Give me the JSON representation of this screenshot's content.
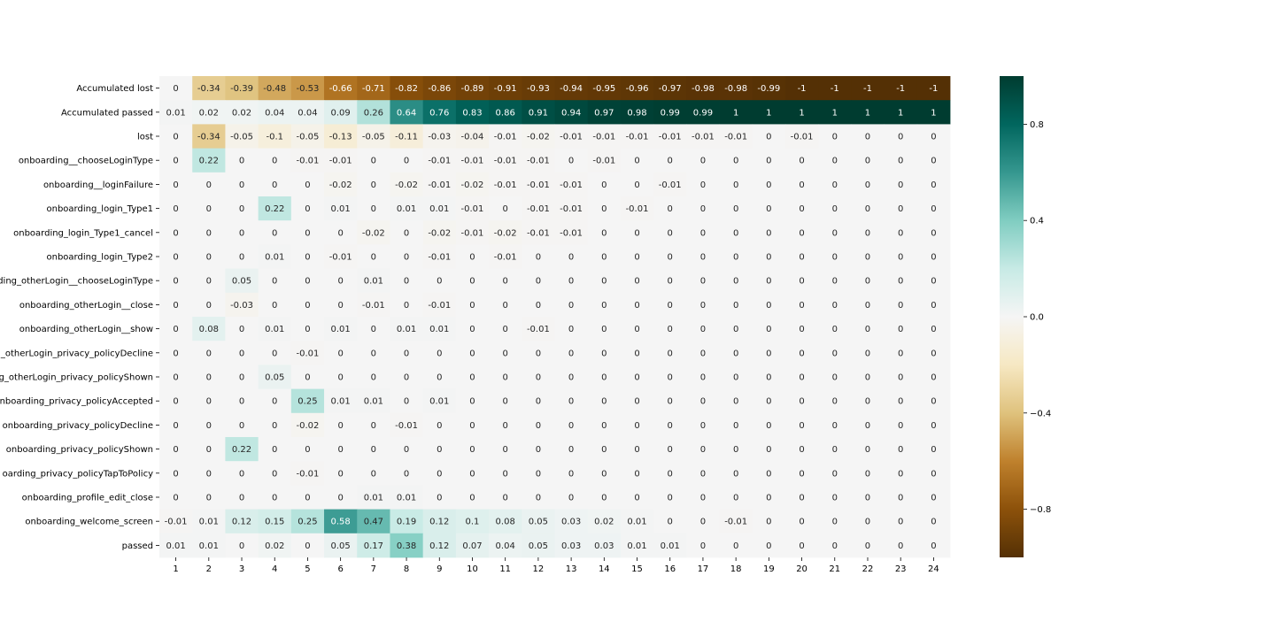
{
  "chart_data": {
    "type": "heatmap",
    "title": "",
    "xlabel": "",
    "ylabel": "",
    "x": [
      "1",
      "2",
      "3",
      "4",
      "5",
      "6",
      "7",
      "8",
      "9",
      "10",
      "11",
      "12",
      "13",
      "14",
      "15",
      "16",
      "17",
      "18",
      "19",
      "20",
      "21",
      "22",
      "23",
      "24"
    ],
    "y": [
      "Accumulated lost",
      "Accumulated passed",
      "lost",
      "onboarding__chooseLoginType",
      "onboarding__loginFailure",
      "onboarding_login_Type1",
      "onboarding_login_Type1_cancel",
      "onboarding_login_Type2",
      "ding_otherLogin__chooseLoginType",
      "onboarding_otherLogin__close",
      "onboarding_otherLogin__show",
      "_otherLogin_privacy_policyDecline",
      "g_otherLogin_privacy_policyShown",
      "onboarding_privacy_policyAccepted",
      "onboarding_privacy_policyDecline",
      "onboarding_privacy_policyShown",
      "oarding_privacy_policyTapToPolicy",
      "onboarding_profile_edit_close",
      "onboarding_welcome_screen",
      "passed"
    ],
    "values": [
      [
        0,
        -0.34,
        -0.39,
        -0.48,
        -0.53,
        -0.66,
        -0.71,
        -0.82,
        -0.86,
        -0.89,
        -0.91,
        -0.93,
        -0.94,
        -0.95,
        -0.96,
        -0.97,
        -0.98,
        -0.98,
        -0.99,
        -1,
        -1,
        -1,
        -1,
        -1
      ],
      [
        0.01,
        0.02,
        0.02,
        0.04,
        0.04,
        0.09,
        0.26,
        0.64,
        0.76,
        0.83,
        0.86,
        0.91,
        0.94,
        0.97,
        0.98,
        0.99,
        0.99,
        1,
        1,
        1,
        1,
        1,
        1,
        1
      ],
      [
        0,
        -0.34,
        -0.05,
        -0.1,
        -0.05,
        -0.13,
        -0.05,
        -0.11,
        -0.03,
        -0.04,
        -0.01,
        -0.02,
        -0.01,
        -0.01,
        -0.01,
        -0.01,
        -0.01,
        -0.01,
        0,
        -0.01,
        0,
        0,
        0,
        0
      ],
      [
        0,
        0.22,
        0,
        0,
        -0.01,
        -0.01,
        0,
        0,
        -0.01,
        -0.01,
        -0.01,
        -0.01,
        0,
        -0.01,
        0,
        0,
        0,
        0,
        0,
        0,
        0,
        0,
        0,
        0
      ],
      [
        0,
        0,
        0,
        0,
        0,
        -0.02,
        0,
        -0.02,
        -0.01,
        -0.02,
        -0.01,
        -0.01,
        -0.01,
        0,
        0,
        -0.01,
        0,
        0,
        0,
        0,
        0,
        0,
        0,
        0
      ],
      [
        0,
        0,
        0,
        0.22,
        0,
        0.01,
        0,
        0.01,
        0.01,
        -0.01,
        0,
        -0.01,
        -0.01,
        0,
        -0.01,
        0,
        0,
        0,
        0,
        0,
        0,
        0,
        0,
        0
      ],
      [
        0,
        0,
        0,
        0,
        0,
        0,
        -0.02,
        0,
        -0.02,
        -0.01,
        -0.02,
        -0.01,
        -0.01,
        0,
        0,
        0,
        0,
        0,
        0,
        0,
        0,
        0,
        0,
        0
      ],
      [
        0,
        0,
        0,
        0.01,
        0,
        -0.01,
        0,
        0,
        -0.01,
        0,
        -0.01,
        0,
        0,
        0,
        0,
        0,
        0,
        0,
        0,
        0,
        0,
        0,
        0,
        0
      ],
      [
        0,
        0,
        0.05,
        0,
        0,
        0,
        0.01,
        0,
        0,
        0,
        0,
        0,
        0,
        0,
        0,
        0,
        0,
        0,
        0,
        0,
        0,
        0,
        0,
        0
      ],
      [
        0,
        0,
        -0.03,
        0,
        0,
        0,
        -0.01,
        0,
        -0.01,
        0,
        0,
        0,
        0,
        0,
        0,
        0,
        0,
        0,
        0,
        0,
        0,
        0,
        0,
        0
      ],
      [
        0,
        0.08,
        0,
        0.01,
        0,
        0.01,
        0,
        0.01,
        0.01,
        0,
        0,
        -0.01,
        0,
        0,
        0,
        0,
        0,
        0,
        0,
        0,
        0,
        0,
        0,
        0
      ],
      [
        0,
        0,
        0,
        0,
        -0.01,
        0,
        0,
        0,
        0,
        0,
        0,
        0,
        0,
        0,
        0,
        0,
        0,
        0,
        0,
        0,
        0,
        0,
        0,
        0
      ],
      [
        0,
        0,
        0,
        0.05,
        0,
        0,
        0,
        0,
        0,
        0,
        0,
        0,
        0,
        0,
        0,
        0,
        0,
        0,
        0,
        0,
        0,
        0,
        0,
        0
      ],
      [
        0,
        0,
        0,
        0,
        0.25,
        0.01,
        0.01,
        0,
        0.01,
        0,
        0,
        0,
        0,
        0,
        0,
        0,
        0,
        0,
        0,
        0,
        0,
        0,
        0,
        0
      ],
      [
        0,
        0,
        0,
        0,
        -0.02,
        0,
        0,
        -0.01,
        0,
        0,
        0,
        0,
        0,
        0,
        0,
        0,
        0,
        0,
        0,
        0,
        0,
        0,
        0,
        0
      ],
      [
        0,
        0,
        0.22,
        0,
        0,
        0,
        0,
        0,
        0,
        0,
        0,
        0,
        0,
        0,
        0,
        0,
        0,
        0,
        0,
        0,
        0,
        0,
        0,
        0
      ],
      [
        0,
        0,
        0,
        0,
        -0.01,
        0,
        0,
        0,
        0,
        0,
        0,
        0,
        0,
        0,
        0,
        0,
        0,
        0,
        0,
        0,
        0,
        0,
        0,
        0
      ],
      [
        0,
        0,
        0,
        0,
        0,
        0,
        0.01,
        0.01,
        0,
        0,
        0,
        0,
        0,
        0,
        0,
        0,
        0,
        0,
        0,
        0,
        0,
        0,
        0,
        0
      ],
      [
        -0.01,
        0.01,
        0.12,
        0.15,
        0.25,
        0.58,
        0.47,
        0.19,
        0.12,
        0.1,
        0.08,
        0.05,
        0.03,
        0.02,
        0.01,
        0,
        0,
        -0.01,
        0,
        0,
        0,
        0,
        0,
        0
      ],
      [
        0.01,
        0.01,
        0,
        0.02,
        0,
        0.05,
        0.17,
        0.38,
        0.12,
        0.07,
        0.04,
        0.05,
        0.03,
        0.03,
        0.01,
        0.01,
        0,
        0,
        0,
        0,
        0,
        0,
        0,
        0
      ]
    ],
    "colormap": "BrBG",
    "vmin": -1,
    "vmax": 1,
    "colorbar_ticks": [
      0.8,
      0.4,
      0.0,
      -0.4,
      -0.8
    ],
    "colorbar_tick_labels": [
      "0.8",
      "0.4",
      "0.0",
      "−0.4",
      "−0.8"
    ],
    "annotated": true,
    "grid": false
  }
}
